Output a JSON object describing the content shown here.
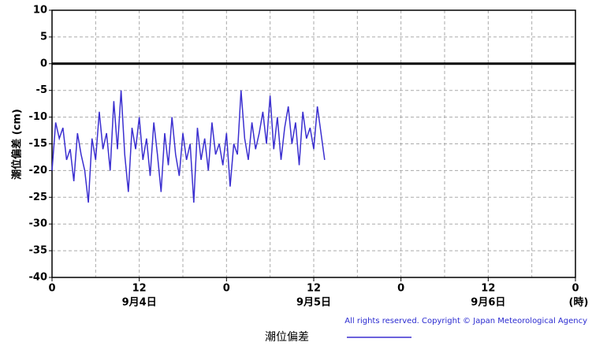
{
  "chart_data": {
    "type": "line",
    "ylabel": "潮位偏差 (cm)",
    "x": [
      0,
      0.5,
      1,
      1.5,
      2,
      2.5,
      3,
      3.5,
      4,
      4.5,
      5,
      5.5,
      6,
      6.5,
      7,
      7.5,
      8,
      8.5,
      9,
      9.5,
      10,
      10.5,
      11,
      11.5,
      12,
      12.5,
      13,
      13.5,
      14,
      14.5,
      15,
      15.5,
      16,
      16.5,
      17,
      17.5,
      18,
      18.5,
      19,
      19.5,
      20,
      20.5,
      21,
      21.5,
      22,
      22.5,
      23,
      23.5,
      24,
      24.5,
      25,
      25.5,
      26,
      26.5,
      27,
      27.5,
      28,
      28.5,
      29,
      29.5,
      30,
      30.5,
      31,
      31.5,
      32,
      32.5,
      33,
      33.5,
      34,
      34.5,
      35,
      35.5,
      36,
      36.5,
      37,
      37.5
    ],
    "series": [
      {
        "name": "潮位偏差",
        "color": "#3b2fd0",
        "values": [
          -20,
          -11,
          -14,
          -12,
          -18,
          -16,
          -22,
          -13,
          -17,
          -20,
          -26,
          -14,
          -18,
          -9,
          -16,
          -13,
          -20,
          -7,
          -16,
          -5,
          -17,
          -24,
          -12,
          -16,
          -10,
          -18,
          -14,
          -21,
          -11,
          -17,
          -24,
          -13,
          -19,
          -10,
          -17,
          -21,
          -13,
          -18,
          -15,
          -26,
          -12,
          -18,
          -14,
          -20,
          -11,
          -17,
          -15,
          -19,
          -13,
          -23,
          -15,
          -17,
          -5,
          -14,
          -18,
          -11,
          -16,
          -13,
          -9,
          -15,
          -6,
          -16,
          -10,
          -18,
          -12,
          -8,
          -15,
          -11,
          -19,
          -9,
          -14,
          -12,
          -16,
          -8,
          -13,
          -18
        ]
      }
    ],
    "xlim": [
      0,
      72
    ],
    "xticks": [
      0,
      12,
      {
        "value": 24,
        "label": "0"
      },
      {
        "value": 36,
        "label": "12"
      },
      {
        "value": 48,
        "label": "0"
      },
      {
        "value": 60,
        "label": "12"
      },
      {
        "value": 72,
        "label": "0"
      }
    ],
    "xgrid_minor": [
      6,
      18,
      30,
      42,
      54,
      66
    ],
    "x_date_labels": [
      {
        "value": 12,
        "label": "9月4日"
      },
      {
        "value": 36,
        "label": "9月5日"
      },
      {
        "value": 60,
        "label": "9月6日"
      }
    ],
    "x_unit_label": "(時)",
    "ylim": [
      -40,
      10
    ],
    "yticks": [
      -40,
      -35,
      -30,
      -25,
      -20,
      -15,
      -10,
      -5,
      0,
      5,
      10
    ],
    "grid": true,
    "zero_line": true,
    "copyright": "All rights reserved. Copyright © Japan Meteorological Agency"
  }
}
